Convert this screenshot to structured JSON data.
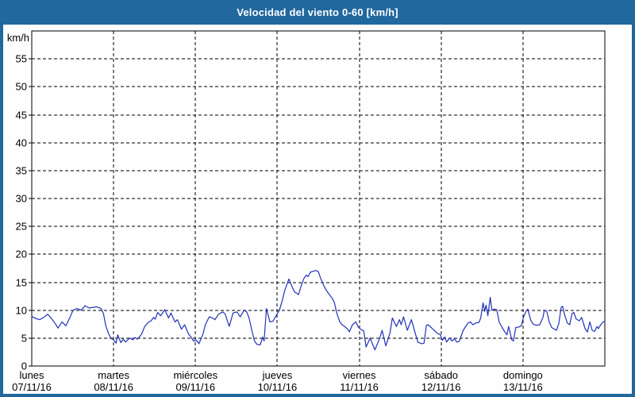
{
  "window": {
    "title": "Velocidad del viento 0-60 [km/h]"
  },
  "colors": {
    "frame_blue": "#20689e",
    "title_text": "#ffffff",
    "plot_background": "#fdfefd",
    "line_blue": "#2233bb",
    "grid_black": "#000000"
  },
  "chart_data": {
    "type": "line",
    "title": "Velocidad del viento 0-60 [km/h]",
    "y_unit_label": "km/h",
    "ylabel": "km/h",
    "xlabel": "",
    "ylim": [
      0,
      60
    ],
    "y_ticks": [
      0,
      5,
      10,
      15,
      20,
      25,
      30,
      35,
      40,
      45,
      50,
      55
    ],
    "grid": "dashed",
    "legend": "none",
    "x_days": [
      {
        "name": "lunes",
        "date": "07/11/16"
      },
      {
        "name": "martes",
        "date": "08/11/16"
      },
      {
        "name": "miércoles",
        "date": "09/11/16"
      },
      {
        "name": "jueves",
        "date": "10/11/16"
      },
      {
        "name": "viernes",
        "date": "11/11/16"
      },
      {
        "name": "sábado",
        "date": "12/11/16"
      },
      {
        "name": "domingo",
        "date": "13/11/16"
      }
    ],
    "x_hours_total": 168,
    "series": [
      {
        "units": "km/h",
        "points": [
          [
            0,
            8.9
          ],
          [
            1.2,
            8.5
          ],
          [
            2.3,
            8.3
          ],
          [
            3.5,
            8.7
          ],
          [
            4.7,
            9.3
          ],
          [
            5.8,
            8.5
          ],
          [
            7,
            7.5
          ],
          [
            7.7,
            6.8
          ],
          [
            8.9,
            7.9
          ],
          [
            10,
            7.2
          ],
          [
            11.2,
            8.7
          ],
          [
            12.1,
            10
          ],
          [
            13.3,
            10.3
          ],
          [
            14.5,
            10
          ],
          [
            15.6,
            10.8
          ],
          [
            16.8,
            10.4
          ],
          [
            18,
            10.5
          ],
          [
            19.1,
            10.6
          ],
          [
            20.3,
            10.3
          ],
          [
            21,
            9.4
          ],
          [
            21.7,
            7.2
          ],
          [
            22.6,
            5.7
          ],
          [
            23.3,
            4.9
          ],
          [
            24,
            4.7
          ],
          [
            24.7,
            4.1
          ],
          [
            25.2,
            5.6
          ],
          [
            26.1,
            4.2
          ],
          [
            26.8,
            4.8
          ],
          [
            27.5,
            4.3
          ],
          [
            28.7,
            5
          ],
          [
            29.6,
            4.7
          ],
          [
            30.3,
            5.1
          ],
          [
            31,
            4.8
          ],
          [
            32.2,
            5.7
          ],
          [
            33.1,
            7.1
          ],
          [
            34.3,
            7.9
          ],
          [
            35,
            8.1
          ],
          [
            35.7,
            8.7
          ],
          [
            36.2,
            8.4
          ],
          [
            36.9,
            9.6
          ],
          [
            37.8,
            9
          ],
          [
            39,
            10.1
          ],
          [
            40.1,
            8.6
          ],
          [
            40.8,
            9.5
          ],
          [
            42,
            7.9
          ],
          [
            42.7,
            8.3
          ],
          [
            43.9,
            6.6
          ],
          [
            44.8,
            7.4
          ],
          [
            46,
            5.7
          ],
          [
            46.7,
            5.2
          ],
          [
            47.4,
            4.5
          ],
          [
            48.3,
            4.6
          ],
          [
            49,
            4
          ],
          [
            50.2,
            5.7
          ],
          [
            50.9,
            7.4
          ],
          [
            52,
            8.8
          ],
          [
            53,
            8.6
          ],
          [
            53.7,
            8.3
          ],
          [
            54.8,
            9.3
          ],
          [
            56,
            9.7
          ],
          [
            56.7,
            9.3
          ],
          [
            57.9,
            7.1
          ],
          [
            59,
            9.5
          ],
          [
            60.2,
            9.7
          ],
          [
            61.1,
            8.8
          ],
          [
            62.3,
            10
          ],
          [
            63,
            9.7
          ],
          [
            63.7,
            8.6
          ],
          [
            64.6,
            6.2
          ],
          [
            65.3,
            4.5
          ],
          [
            66,
            3.9
          ],
          [
            67,
            3.8
          ],
          [
            67.7,
            5.2
          ],
          [
            68.1,
            4.5
          ],
          [
            68.8,
            10.3
          ],
          [
            69.8,
            7.9
          ],
          [
            70.7,
            8
          ],
          [
            71.9,
            9.3
          ],
          [
            72.6,
            10
          ],
          [
            73.5,
            11.9
          ],
          [
            74.2,
            13.6
          ],
          [
            75.4,
            15.6
          ],
          [
            76.3,
            14.2
          ],
          [
            77,
            13.3
          ],
          [
            78.2,
            12.8
          ],
          [
            78.9,
            14.2
          ],
          [
            79.8,
            15.7
          ],
          [
            80.5,
            16.3
          ],
          [
            81,
            16
          ],
          [
            81.7,
            16.8
          ],
          [
            82.6,
            17
          ],
          [
            83.3,
            17.1
          ],
          [
            84,
            16.9
          ],
          [
            84.7,
            15.7
          ],
          [
            85.6,
            14.4
          ],
          [
            86.3,
            13.6
          ],
          [
            87,
            13
          ],
          [
            88,
            12.2
          ],
          [
            88.7,
            11.4
          ],
          [
            89.4,
            9.5
          ],
          [
            90.3,
            7.9
          ],
          [
            91,
            7.4
          ],
          [
            91.7,
            7.1
          ],
          [
            92.6,
            6.6
          ],
          [
            93.1,
            6.1
          ],
          [
            94,
            7.4
          ],
          [
            95,
            7.9
          ],
          [
            95.7,
            7
          ],
          [
            96.4,
            6.6
          ],
          [
            97.3,
            6.3
          ],
          [
            98,
            3.4
          ],
          [
            99.2,
            5
          ],
          [
            100.6,
            2.9
          ],
          [
            102,
            5
          ],
          [
            102.7,
            6.4
          ],
          [
            103.8,
            3.6
          ],
          [
            105,
            5.9
          ],
          [
            105.7,
            8.6
          ],
          [
            106.9,
            7.1
          ],
          [
            107.8,
            8.3
          ],
          [
            108.3,
            7.4
          ],
          [
            109,
            8.8
          ],
          [
            110.1,
            6.4
          ],
          [
            111.3,
            8.3
          ],
          [
            112.5,
            5.7
          ],
          [
            113.2,
            4.3
          ],
          [
            114.3,
            4
          ],
          [
            115,
            4.1
          ],
          [
            115.7,
            7.3
          ],
          [
            116.2,
            7.4
          ],
          [
            117.8,
            6.5
          ],
          [
            119,
            5.8
          ],
          [
            119.7,
            5.7
          ],
          [
            120.4,
            4.6
          ],
          [
            121.1,
            5.2
          ],
          [
            121.6,
            4.3
          ],
          [
            122.5,
            5
          ],
          [
            123.2,
            4.5
          ],
          [
            123.9,
            4.9
          ],
          [
            124.6,
            4.3
          ],
          [
            125.3,
            4.4
          ],
          [
            126.5,
            6.4
          ],
          [
            127.2,
            7.1
          ],
          [
            127.9,
            7.7
          ],
          [
            128.6,
            7.9
          ],
          [
            129.3,
            7.4
          ],
          [
            130.2,
            7.7
          ],
          [
            131.1,
            7.8
          ],
          [
            131.6,
            8.6
          ],
          [
            132.3,
            11.3
          ],
          [
            132.8,
            9.8
          ],
          [
            133.2,
            10.9
          ],
          [
            133.7,
            9
          ],
          [
            134.4,
            12.3
          ],
          [
            134.9,
            10
          ],
          [
            135.6,
            10.2
          ],
          [
            136.3,
            10.1
          ],
          [
            137,
            7.9
          ],
          [
            137.9,
            6.9
          ],
          [
            138.6,
            6.2
          ],
          [
            139.3,
            5.6
          ],
          [
            139.8,
            7.1
          ],
          [
            140.7,
            4.7
          ],
          [
            141.2,
            4.5
          ],
          [
            141.9,
            6.9
          ],
          [
            142.8,
            7
          ],
          [
            143.5,
            7.2
          ],
          [
            144.2,
            8.8
          ],
          [
            144.9,
            9.8
          ],
          [
            145.4,
            10.2
          ],
          [
            146.3,
            8.2
          ],
          [
            147,
            7.5
          ],
          [
            147.9,
            7.3
          ],
          [
            148.9,
            7.4
          ],
          [
            149.8,
            8.6
          ],
          [
            150.3,
            10
          ],
          [
            151,
            9.8
          ],
          [
            151.7,
            7.9
          ],
          [
            152.4,
            6.9
          ],
          [
            153.3,
            6.6
          ],
          [
            153.8,
            6.4
          ],
          [
            154.5,
            7.6
          ],
          [
            155.2,
            10.5
          ],
          [
            155.6,
            10.7
          ],
          [
            156.3,
            9
          ],
          [
            157,
            7.7
          ],
          [
            157.7,
            7.4
          ],
          [
            158.4,
            9.4
          ],
          [
            158.9,
            9.6
          ],
          [
            159.6,
            8.4
          ],
          [
            160.5,
            8.1
          ],
          [
            161.2,
            8.7
          ],
          [
            162.2,
            6.7
          ],
          [
            162.9,
            6.1
          ],
          [
            163.6,
            7.9
          ],
          [
            164.3,
            6.4
          ],
          [
            165,
            6.2
          ],
          [
            165.7,
            7.1
          ],
          [
            166.1,
            6.7
          ],
          [
            166.8,
            7.4
          ],
          [
            167.5,
            7.9
          ],
          [
            168,
            8
          ]
        ]
      }
    ]
  }
}
